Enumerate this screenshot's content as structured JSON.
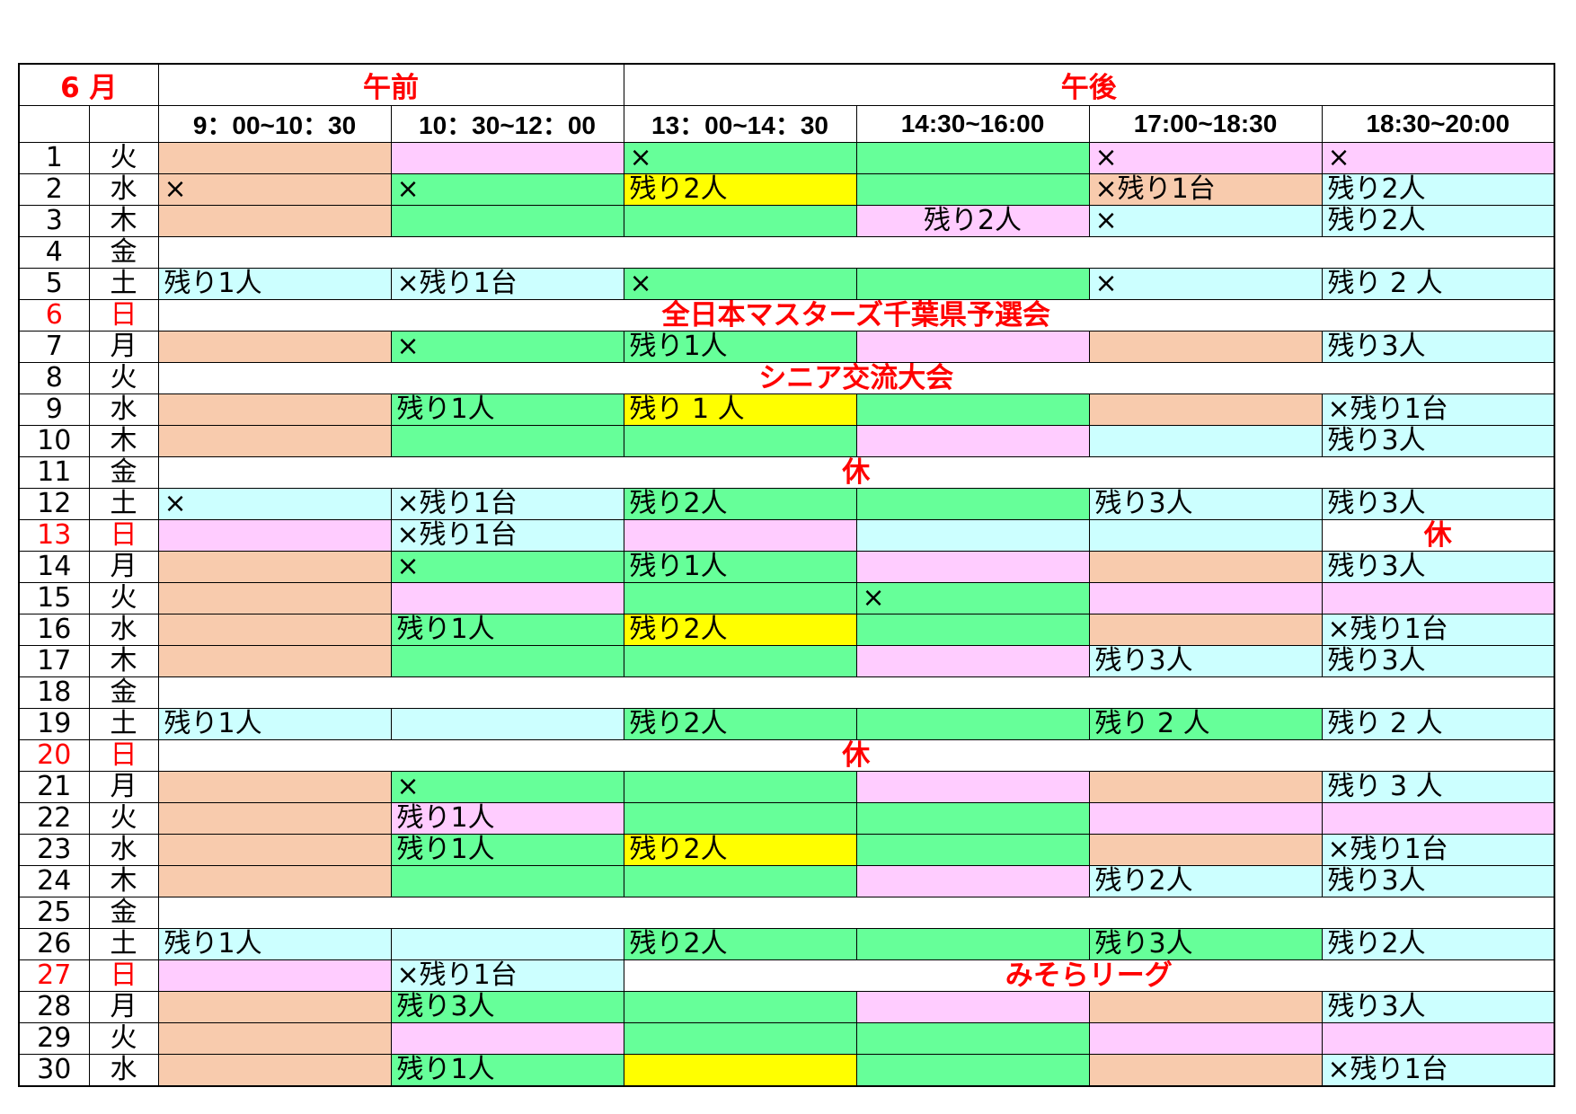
{
  "colors": {
    "orange": "#F8CBAD",
    "pink": "#FFCCFF",
    "green": "#66FF99",
    "cyan": "#CCFFFF",
    "yellow": "#FFFF00",
    "white": "#FFFFFF",
    "red": "#FF0000"
  },
  "header": {
    "month": "6 月",
    "am": "午前",
    "pm": "午後",
    "time_slots": [
      "9：00~10：30",
      "10：30~12：00",
      "13：00~14：30",
      "14:30~16:00",
      "17:00~18:30",
      "18:30~20:00"
    ]
  },
  "days": [
    {
      "day": "1",
      "weekday": "火",
      "cells": [
        {
          "bg": "orange"
        },
        {
          "bg": "pink"
        },
        {
          "bg": "green",
          "text": "×"
        },
        {
          "bg": "green"
        },
        {
          "bg": "pink",
          "text": "×"
        },
        {
          "bg": "pink",
          "text": "×"
        }
      ]
    },
    {
      "day": "2",
      "weekday": "水",
      "cells": [
        {
          "bg": "orange",
          "text": "×"
        },
        {
          "bg": "green",
          "text": "×"
        },
        {
          "bg": "yellow",
          "text": "残り2人"
        },
        {
          "bg": "green"
        },
        {
          "bg": "orange",
          "text": "×残り1台"
        },
        {
          "bg": "cyan",
          "text": "残り2人"
        }
      ]
    },
    {
      "day": "3",
      "weekday": "木",
      "cells": [
        {
          "bg": "orange"
        },
        {
          "bg": "green"
        },
        {
          "bg": "green"
        },
        {
          "bg": "pink",
          "text": "残り2人",
          "align": "center"
        },
        {
          "bg": "cyan",
          "text": "×"
        },
        {
          "bg": "cyan",
          "text": "残り2人"
        }
      ]
    },
    {
      "day": "4",
      "weekday": "金",
      "cells": [
        {
          "bg": "white",
          "span": 6
        }
      ]
    },
    {
      "day": "5",
      "weekday": "土",
      "cells": [
        {
          "bg": "cyan",
          "text": "残り1人"
        },
        {
          "bg": "cyan",
          "text": "×残り1台"
        },
        {
          "bg": "green",
          "text": "×"
        },
        {
          "bg": "green"
        },
        {
          "bg": "cyan",
          "text": "×"
        },
        {
          "bg": "cyan",
          "text": "残り 2 人"
        }
      ]
    },
    {
      "day": "6",
      "weekday": "日",
      "day_color": "red",
      "cells": [
        {
          "bg": "white",
          "span": 6,
          "style": "notice",
          "text": "全日本マスターズ千葉県予選会"
        }
      ]
    },
    {
      "day": "7",
      "weekday": "月",
      "cells": [
        {
          "bg": "orange"
        },
        {
          "bg": "green",
          "text": "×"
        },
        {
          "bg": "green",
          "text": "残り1人"
        },
        {
          "bg": "pink"
        },
        {
          "bg": "orange"
        },
        {
          "bg": "cyan",
          "text": "残り3人"
        }
      ]
    },
    {
      "day": "8",
      "weekday": "火",
      "cells": [
        {
          "bg": "white",
          "span": 6,
          "style": "notice",
          "text": "シニア交流大会"
        }
      ]
    },
    {
      "day": "9",
      "weekday": "水",
      "cells": [
        {
          "bg": "orange"
        },
        {
          "bg": "green",
          "text": "残り1人"
        },
        {
          "bg": "yellow",
          "text": "残り 1 人"
        },
        {
          "bg": "green"
        },
        {
          "bg": "orange"
        },
        {
          "bg": "cyan",
          "text": "×残り1台"
        }
      ]
    },
    {
      "day": "10",
      "weekday": "木",
      "cells": [
        {
          "bg": "orange"
        },
        {
          "bg": "green"
        },
        {
          "bg": "green"
        },
        {
          "bg": "pink"
        },
        {
          "bg": "cyan"
        },
        {
          "bg": "cyan",
          "text": "残り3人"
        }
      ]
    },
    {
      "day": "11",
      "weekday": "金",
      "cells": [
        {
          "bg": "white",
          "span": 6,
          "style": "notice",
          "text": "休"
        }
      ]
    },
    {
      "day": "12",
      "weekday": "土",
      "cells": [
        {
          "bg": "cyan",
          "text": "×"
        },
        {
          "bg": "cyan",
          "text": "×残り1台"
        },
        {
          "bg": "green",
          "text": "残り2人"
        },
        {
          "bg": "green"
        },
        {
          "bg": "cyan",
          "text": "残り3人"
        },
        {
          "bg": "cyan",
          "text": "残り3人"
        }
      ]
    },
    {
      "day": "13",
      "weekday": "日",
      "day_color": "red",
      "cells": [
        {
          "bg": "pink"
        },
        {
          "bg": "cyan",
          "text": "×残り1台"
        },
        {
          "bg": "pink"
        },
        {
          "bg": "cyan"
        },
        {
          "bg": "cyan"
        },
        {
          "bg": "white",
          "style": "notice",
          "text": "休"
        }
      ]
    },
    {
      "day": "14",
      "weekday": "月",
      "cells": [
        {
          "bg": "orange"
        },
        {
          "bg": "green",
          "text": "×"
        },
        {
          "bg": "green",
          "text": "残り1人"
        },
        {
          "bg": "pink"
        },
        {
          "bg": "orange"
        },
        {
          "bg": "cyan",
          "text": "残り3人"
        }
      ]
    },
    {
      "day": "15",
      "weekday": "火",
      "cells": [
        {
          "bg": "orange"
        },
        {
          "bg": "pink"
        },
        {
          "bg": "green"
        },
        {
          "bg": "green",
          "text": "×"
        },
        {
          "bg": "pink"
        },
        {
          "bg": "pink"
        }
      ]
    },
    {
      "day": "16",
      "weekday": "水",
      "cells": [
        {
          "bg": "orange"
        },
        {
          "bg": "green",
          "text": "残り1人"
        },
        {
          "bg": "yellow",
          "text": "残り2人"
        },
        {
          "bg": "green"
        },
        {
          "bg": "orange"
        },
        {
          "bg": "cyan",
          "text": "×残り1台"
        }
      ]
    },
    {
      "day": "17",
      "weekday": "木",
      "cells": [
        {
          "bg": "orange"
        },
        {
          "bg": "green"
        },
        {
          "bg": "green"
        },
        {
          "bg": "pink"
        },
        {
          "bg": "cyan",
          "text": "残り3人"
        },
        {
          "bg": "cyan",
          "text": "残り3人"
        }
      ]
    },
    {
      "day": "18",
      "weekday": "金",
      "cells": [
        {
          "bg": "white",
          "span": 6
        }
      ]
    },
    {
      "day": "19",
      "weekday": "土",
      "cells": [
        {
          "bg": "cyan",
          "text": "残り1人"
        },
        {
          "bg": "cyan"
        },
        {
          "bg": "green",
          "text": "残り2人"
        },
        {
          "bg": "green"
        },
        {
          "bg": "green",
          "text": "残り 2 人"
        },
        {
          "bg": "cyan",
          "text": "残り 2 人"
        }
      ]
    },
    {
      "day": "20",
      "weekday": "日",
      "day_color": "red",
      "cells": [
        {
          "bg": "white",
          "span": 6,
          "style": "notice",
          "text": "休"
        }
      ]
    },
    {
      "day": "21",
      "weekday": "月",
      "cells": [
        {
          "bg": "orange"
        },
        {
          "bg": "green",
          "text": "×"
        },
        {
          "bg": "green"
        },
        {
          "bg": "pink"
        },
        {
          "bg": "orange"
        },
        {
          "bg": "cyan",
          "text": "残り 3 人"
        }
      ]
    },
    {
      "day": "22",
      "weekday": "火",
      "cells": [
        {
          "bg": "orange"
        },
        {
          "bg": "pink",
          "text": "残り1人"
        },
        {
          "bg": "green"
        },
        {
          "bg": "green"
        },
        {
          "bg": "pink"
        },
        {
          "bg": "pink"
        }
      ]
    },
    {
      "day": "23",
      "weekday": "水",
      "cells": [
        {
          "bg": "orange"
        },
        {
          "bg": "green",
          "text": "残り1人"
        },
        {
          "bg": "yellow",
          "text": "残り2人"
        },
        {
          "bg": "green"
        },
        {
          "bg": "orange"
        },
        {
          "bg": "cyan",
          "text": "×残り1台"
        }
      ]
    },
    {
      "day": "24",
      "weekday": "木",
      "cells": [
        {
          "bg": "orange"
        },
        {
          "bg": "green"
        },
        {
          "bg": "green"
        },
        {
          "bg": "pink"
        },
        {
          "bg": "cyan",
          "text": "残り2人"
        },
        {
          "bg": "cyan",
          "text": "残り3人"
        }
      ]
    },
    {
      "day": "25",
      "weekday": "金",
      "cells": [
        {
          "bg": "white",
          "span": 6
        }
      ]
    },
    {
      "day": "26",
      "weekday": "土",
      "cells": [
        {
          "bg": "cyan",
          "text": "残り1人"
        },
        {
          "bg": "cyan"
        },
        {
          "bg": "green",
          "text": "残り2人"
        },
        {
          "bg": "green"
        },
        {
          "bg": "green",
          "text": "残り3人"
        },
        {
          "bg": "cyan",
          "text": "残り2人"
        }
      ]
    },
    {
      "day": "27",
      "weekday": "日",
      "day_color": "red",
      "cells": [
        {
          "bg": "pink"
        },
        {
          "bg": "cyan",
          "text": "×残り1台"
        },
        {
          "bg": "white",
          "span": 4,
          "style": "notice",
          "text": "みそらリーグ"
        }
      ]
    },
    {
      "day": "28",
      "weekday": "月",
      "cells": [
        {
          "bg": "orange"
        },
        {
          "bg": "green",
          "text": "残り3人"
        },
        {
          "bg": "green"
        },
        {
          "bg": "pink"
        },
        {
          "bg": "orange"
        },
        {
          "bg": "cyan",
          "text": "残り3人"
        }
      ]
    },
    {
      "day": "29",
      "weekday": "火",
      "cells": [
        {
          "bg": "orange"
        },
        {
          "bg": "pink"
        },
        {
          "bg": "green"
        },
        {
          "bg": "green"
        },
        {
          "bg": "pink"
        },
        {
          "bg": "pink"
        }
      ]
    },
    {
      "day": "30",
      "weekday": "水",
      "cells": [
        {
          "bg": "orange"
        },
        {
          "bg": "green",
          "text": "残り1人"
        },
        {
          "bg": "yellow"
        },
        {
          "bg": "green"
        },
        {
          "bg": "orange"
        },
        {
          "bg": "cyan",
          "text": "×残り1台"
        }
      ]
    }
  ]
}
